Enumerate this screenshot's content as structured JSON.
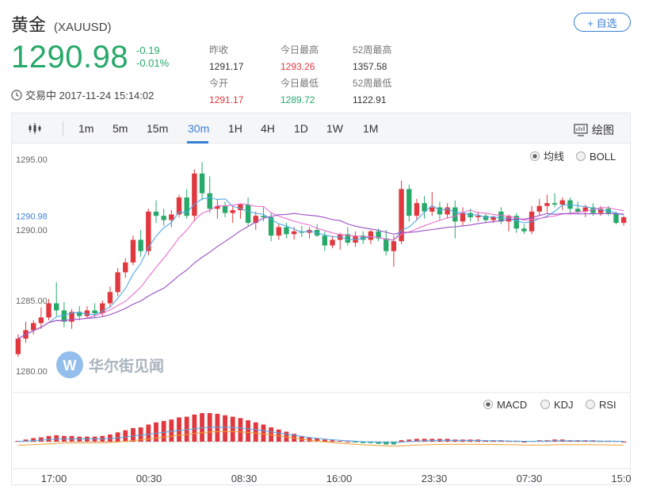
{
  "header": {
    "name": "黄金",
    "code": "(XAUUSD)",
    "add_label": "+ 自选",
    "price": "1290.98",
    "change": "-0.19",
    "change_pct": "-0.01%",
    "status": "交易中 2017-11-24 15:14:02"
  },
  "stats": [
    {
      "label": "昨收",
      "value": "1291.17",
      "color": "#333333"
    },
    {
      "label": "今日最高",
      "value": "1293.26",
      "color": "#e0383e"
    },
    {
      "label": "52周最高",
      "value": "1357.58",
      "color": "#333333"
    },
    {
      "label": "今开",
      "value": "1291.17",
      "color": "#e0383e"
    },
    {
      "label": "今日最低",
      "value": "1289.72",
      "color": "#27a969"
    },
    {
      "label": "52周最低",
      "value": "1122.91",
      "color": "#333333"
    }
  ],
  "toolbar": {
    "periods": [
      "1m",
      "5m",
      "15m",
      "30m",
      "1H",
      "4H",
      "1D",
      "1W",
      "1M"
    ],
    "active": "30m",
    "draw_label": "绘图"
  },
  "main_chart": {
    "y_ticks": [
      "1295.00",
      "1290.00",
      "1285.00",
      "1280.00"
    ],
    "current_price": "1290.98",
    "overlays": [
      {
        "label": "均线",
        "selected": true
      },
      {
        "label": "BOLL",
        "selected": false
      }
    ],
    "watermark": "华尔街见闻"
  },
  "sub_chart": {
    "indicators": [
      {
        "label": "MACD",
        "selected": true
      },
      {
        "label": "KDJ",
        "selected": false
      },
      {
        "label": "RSI",
        "selected": false
      }
    ]
  },
  "x_ticks": [
    "17:00",
    "00:30",
    "08:30",
    "16:00",
    "23:30",
    "07:30",
    "15:0"
  ],
  "colors": {
    "up": "#e0383e",
    "down": "#27a969",
    "accent": "#3b7fd4",
    "ma5": "#4fa8e8",
    "ma10": "#e86fd0",
    "ma20": "#9b4fc4",
    "dea": "#f0a030"
  },
  "chart_data": {
    "type": "candlestick",
    "interval": "30m",
    "ylim": [
      1280,
      1296
    ],
    "candles": [
      [
        1281.2,
        1282.6,
        1281.0,
        1282.3
      ],
      [
        1282.3,
        1283.5,
        1282.0,
        1282.9
      ],
      [
        1282.9,
        1283.6,
        1282.6,
        1283.4
      ],
      [
        1283.4,
        1284.5,
        1283.0,
        1283.8
      ],
      [
        1283.8,
        1285.1,
        1283.6,
        1284.8
      ],
      [
        1284.8,
        1286.3,
        1283.9,
        1284.3
      ],
      [
        1284.3,
        1284.9,
        1283.1,
        1283.5
      ],
      [
        1283.5,
        1284.4,
        1283.0,
        1284.2
      ],
      [
        1284.2,
        1284.6,
        1283.6,
        1283.9
      ],
      [
        1283.9,
        1284.6,
        1283.7,
        1284.3
      ],
      [
        1284.3,
        1284.8,
        1283.8,
        1284.1
      ],
      [
        1284.1,
        1285.0,
        1283.9,
        1284.8
      ],
      [
        1284.8,
        1286.0,
        1284.5,
        1285.6
      ],
      [
        1285.6,
        1287.3,
        1285.3,
        1287.0
      ],
      [
        1287.0,
        1288.0,
        1286.6,
        1287.7
      ],
      [
        1287.7,
        1289.6,
        1287.5,
        1289.3
      ],
      [
        1289.3,
        1290.0,
        1288.1,
        1288.5
      ],
      [
        1288.5,
        1291.5,
        1288.2,
        1291.3
      ],
      [
        1291.3,
        1292.1,
        1290.5,
        1291.0
      ],
      [
        1291.0,
        1291.5,
        1290.3,
        1290.7
      ],
      [
        1290.7,
        1291.4,
        1290.2,
        1291.1
      ],
      [
        1291.1,
        1292.5,
        1290.9,
        1292.3
      ],
      [
        1292.3,
        1292.9,
        1290.8,
        1291.0
      ],
      [
        1291.0,
        1294.3,
        1290.6,
        1294.0
      ],
      [
        1294.0,
        1294.8,
        1292.1,
        1292.6
      ],
      [
        1292.6,
        1293.8,
        1291.2,
        1291.5
      ],
      [
        1291.5,
        1292.2,
        1290.8,
        1291.7
      ],
      [
        1291.7,
        1292.0,
        1290.9,
        1291.2
      ],
      [
        1291.2,
        1291.7,
        1290.5,
        1291.4
      ],
      [
        1291.4,
        1291.9,
        1290.8,
        1291.8
      ],
      [
        1291.8,
        1292.3,
        1290.3,
        1290.5
      ],
      [
        1290.5,
        1291.3,
        1290.0,
        1291.0
      ],
      [
        1291.0,
        1291.6,
        1290.6,
        1290.9
      ],
      [
        1290.9,
        1291.2,
        1289.2,
        1289.6
      ],
      [
        1289.6,
        1290.4,
        1289.3,
        1290.2
      ],
      [
        1290.2,
        1290.5,
        1289.4,
        1289.7
      ],
      [
        1289.7,
        1290.2,
        1289.3,
        1289.9
      ],
      [
        1289.9,
        1290.3,
        1289.5,
        1289.8
      ],
      [
        1289.8,
        1290.2,
        1289.4,
        1290.0
      ],
      [
        1290.0,
        1290.4,
        1289.5,
        1289.6
      ],
      [
        1289.6,
        1289.9,
        1288.5,
        1288.9
      ],
      [
        1288.9,
        1289.6,
        1288.7,
        1289.3
      ],
      [
        1289.3,
        1289.8,
        1288.6,
        1289.7
      ],
      [
        1289.7,
        1290.2,
        1288.9,
        1289.1
      ],
      [
        1289.1,
        1289.9,
        1288.8,
        1289.6
      ],
      [
        1289.6,
        1289.9,
        1289.0,
        1289.3
      ],
      [
        1289.3,
        1290.0,
        1289.0,
        1289.9
      ],
      [
        1289.9,
        1290.1,
        1289.2,
        1289.4
      ],
      [
        1289.4,
        1290.0,
        1288.2,
        1288.5
      ],
      [
        1288.5,
        1289.6,
        1287.4,
        1289.2
      ],
      [
        1289.2,
        1293.5,
        1289.0,
        1292.9
      ],
      [
        1292.9,
        1293.2,
        1290.6,
        1291.0
      ],
      [
        1291.0,
        1292.2,
        1290.7,
        1291.9
      ],
      [
        1291.9,
        1292.4,
        1290.8,
        1291.3
      ],
      [
        1291.3,
        1292.7,
        1291.0,
        1291.6
      ],
      [
        1291.6,
        1292.0,
        1290.7,
        1291.1
      ],
      [
        1291.1,
        1291.9,
        1290.8,
        1291.6
      ],
      [
        1291.6,
        1292.1,
        1289.4,
        1290.6
      ],
      [
        1290.6,
        1291.6,
        1290.3,
        1291.2
      ],
      [
        1291.2,
        1291.5,
        1290.6,
        1290.9
      ],
      [
        1290.9,
        1291.3,
        1290.6,
        1291.0
      ],
      [
        1291.0,
        1291.2,
        1290.5,
        1290.7
      ],
      [
        1290.7,
        1291.0,
        1290.5,
        1290.9
      ],
      [
        1291.3,
        1291.6,
        1290.4,
        1290.6
      ],
      [
        1290.6,
        1291.1,
        1289.9,
        1291.0
      ],
      [
        1291.0,
        1291.2,
        1289.8,
        1290.1
      ],
      [
        1290.1,
        1290.4,
        1289.7,
        1289.9
      ],
      [
        1289.9,
        1291.7,
        1289.7,
        1291.3
      ],
      [
        1291.3,
        1292.2,
        1291.0,
        1291.7
      ],
      [
        1291.7,
        1292.5,
        1291.2,
        1291.9
      ],
      [
        1291.9,
        1292.6,
        1291.6,
        1291.8
      ],
      [
        1291.8,
        1292.3,
        1291.4,
        1292.1
      ],
      [
        1292.1,
        1292.3,
        1291.2,
        1291.5
      ],
      [
        1291.5,
        1292.0,
        1291.1,
        1291.3
      ],
      [
        1291.3,
        1291.8,
        1290.9,
        1291.6
      ],
      [
        1291.6,
        1291.9,
        1291.0,
        1291.2
      ],
      [
        1291.2,
        1291.7,
        1291.0,
        1291.5
      ],
      [
        1291.5,
        1291.7,
        1291.0,
        1291.2
      ],
      [
        1291.2,
        1291.3,
        1290.4,
        1290.5
      ],
      [
        1290.5,
        1291.0,
        1290.3,
        1290.9
      ]
    ],
    "macd": [
      0.01,
      0.03,
      0.05,
      0.06,
      0.08,
      0.09,
      0.08,
      0.08,
      0.07,
      0.07,
      0.07,
      0.08,
      0.1,
      0.13,
      0.16,
      0.19,
      0.2,
      0.24,
      0.27,
      0.29,
      0.31,
      0.34,
      0.35,
      0.38,
      0.4,
      0.4,
      0.39,
      0.37,
      0.35,
      0.33,
      0.3,
      0.27,
      0.24,
      0.2,
      0.17,
      0.14,
      0.11,
      0.08,
      0.06,
      0.05,
      0.03,
      0.02,
      0.01,
      0.0,
      -0.01,
      -0.02,
      -0.02,
      -0.03,
      -0.04,
      -0.04,
      0.02,
      0.03,
      0.04,
      0.04,
      0.04,
      0.04,
      0.04,
      0.03,
      0.03,
      0.03,
      0.03,
      0.02,
      0.02,
      0.02,
      0.01,
      0.01,
      0.0,
      0.01,
      0.02,
      0.02,
      0.03,
      0.03,
      0.02,
      0.02,
      0.02,
      0.02,
      0.01,
      0.01,
      0.01,
      0.0
    ]
  }
}
